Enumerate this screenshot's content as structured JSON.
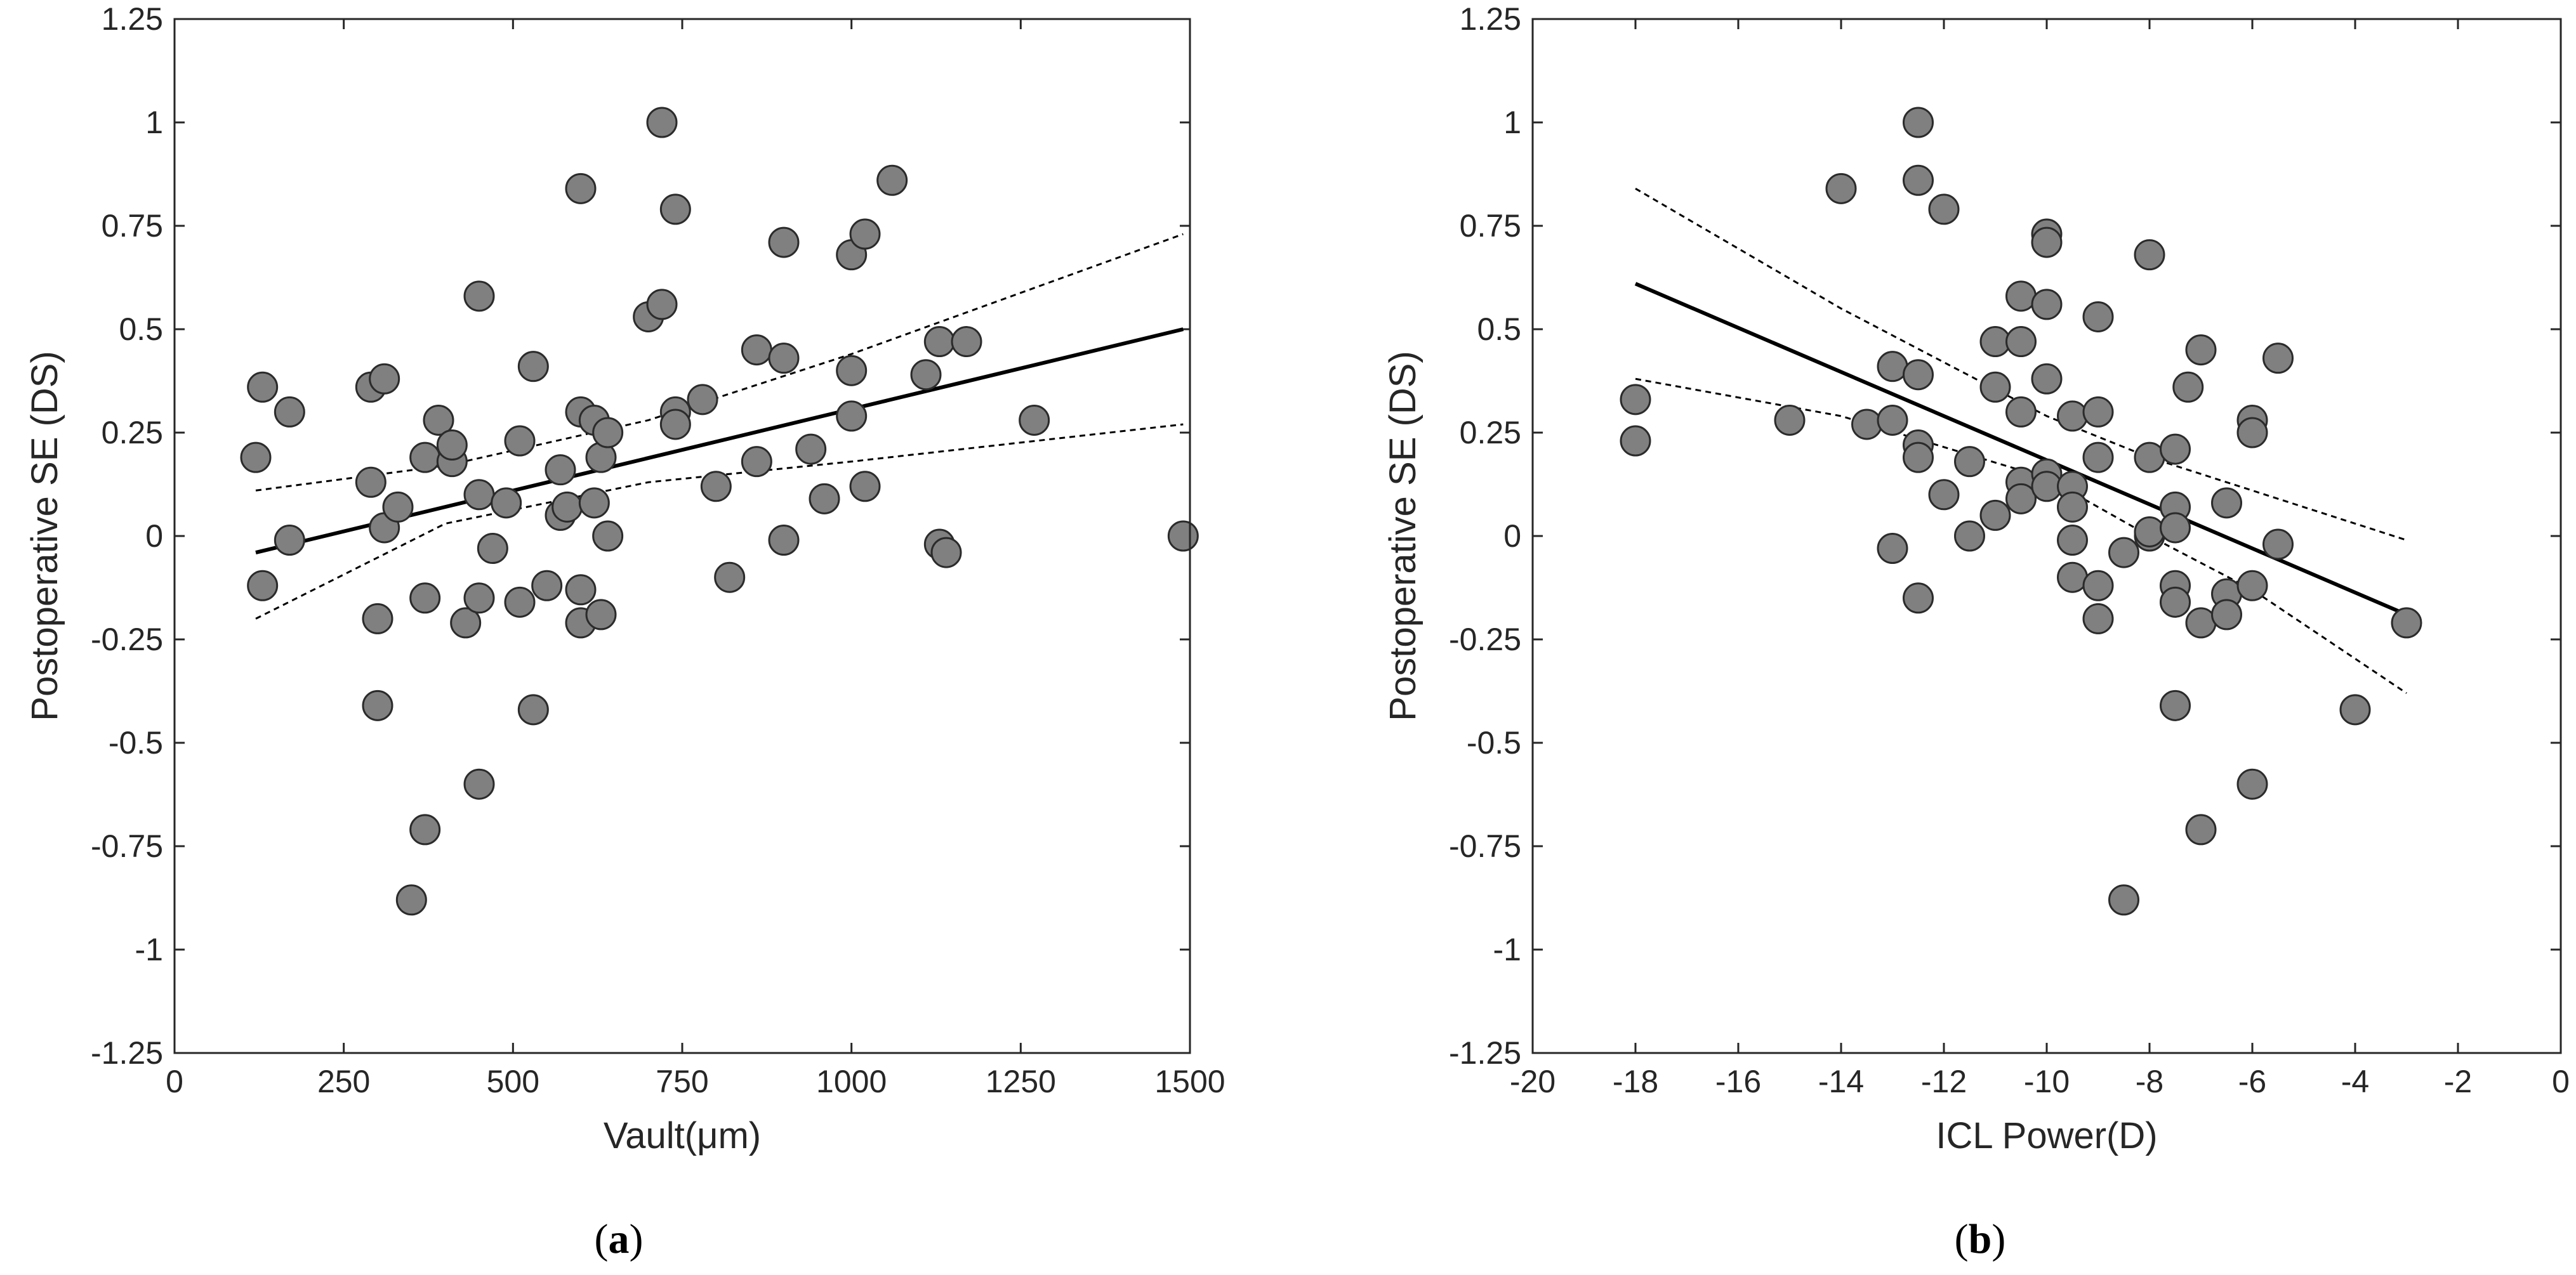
{
  "colors": {
    "marker_fill": "#808080",
    "marker_edge": "#2b2b2b",
    "axis": "#262626",
    "fit_line": "#000000",
    "ci_line": "#000000"
  },
  "chart_data": [
    {
      "type": "scatter",
      "caption_letter": "a",
      "xlabel": "Vault(μm)",
      "ylabel": "Postoperative SE (DS)",
      "xlim": [
        0,
        1500
      ],
      "ylim": [
        -1.25,
        1.25
      ],
      "xticks": [
        0,
        250,
        500,
        750,
        1000,
        1250,
        1500
      ],
      "xtick_labels": [
        "0",
        "250",
        "500",
        "750",
        "1000",
        "1250",
        "1500"
      ],
      "yticks": [
        -1.25,
        -1,
        -0.75,
        -0.5,
        -0.25,
        0,
        0.25,
        0.5,
        0.75,
        1,
        1.25
      ],
      "ytick_labels": [
        "-1.25",
        "-1",
        "-0.75",
        "-0.5",
        "-0.25",
        "0",
        "0.25",
        "0.5",
        "0.75",
        "1",
        "1.25"
      ],
      "points": [
        [
          120,
          0.19
        ],
        [
          130,
          0.36
        ],
        [
          130,
          -0.12
        ],
        [
          170,
          0.3
        ],
        [
          170,
          -0.01
        ],
        [
          290,
          0.36
        ],
        [
          290,
          0.13
        ],
        [
          300,
          -0.2
        ],
        [
          300,
          -0.41
        ],
        [
          310,
          0.38
        ],
        [
          310,
          0.02
        ],
        [
          330,
          0.07
        ],
        [
          350,
          -0.88
        ],
        [
          370,
          0.19
        ],
        [
          370,
          -0.15
        ],
        [
          370,
          -0.71
        ],
        [
          390,
          0.28
        ],
        [
          410,
          0.18
        ],
        [
          410,
          0.22
        ],
        [
          430,
          -0.21
        ],
        [
          450,
          0.58
        ],
        [
          450,
          0.1
        ],
        [
          450,
          -0.15
        ],
        [
          450,
          -0.6
        ],
        [
          470,
          -0.03
        ],
        [
          490,
          0.08
        ],
        [
          510,
          0.23
        ],
        [
          510,
          -0.16
        ],
        [
          530,
          0.41
        ],
        [
          530,
          -0.42
        ],
        [
          550,
          -0.12
        ],
        [
          570,
          0.16
        ],
        [
          570,
          0.05
        ],
        [
          580,
          0.07
        ],
        [
          600,
          0.84
        ],
        [
          600,
          0.3
        ],
        [
          600,
          -0.13
        ],
        [
          600,
          -0.21
        ],
        [
          620,
          0.28
        ],
        [
          620,
          0.08
        ],
        [
          630,
          0.19
        ],
        [
          630,
          -0.19
        ],
        [
          640,
          0.25
        ],
        [
          640,
          0.0
        ],
        [
          700,
          0.53
        ],
        [
          720,
          1.0
        ],
        [
          720,
          0.56
        ],
        [
          740,
          0.79
        ],
        [
          740,
          0.3
        ],
        [
          740,
          0.27
        ],
        [
          780,
          0.33
        ],
        [
          800,
          0.12
        ],
        [
          820,
          -0.1
        ],
        [
          860,
          0.45
        ],
        [
          860,
          0.18
        ],
        [
          900,
          0.71
        ],
        [
          900,
          0.43
        ],
        [
          900,
          -0.01
        ],
        [
          940,
          0.21
        ],
        [
          960,
          0.09
        ],
        [
          1000,
          0.68
        ],
        [
          1000,
          0.4
        ],
        [
          1000,
          0.29
        ],
        [
          1020,
          0.73
        ],
        [
          1020,
          0.12
        ],
        [
          1060,
          0.86
        ],
        [
          1110,
          0.39
        ],
        [
          1130,
          0.47
        ],
        [
          1130,
          -0.02
        ],
        [
          1140,
          -0.04
        ],
        [
          1170,
          0.47
        ],
        [
          1270,
          0.28
        ],
        [
          1490,
          0.0
        ]
      ],
      "fit_line": {
        "x": [
          120,
          1490
        ],
        "y": [
          -0.04,
          0.5
        ]
      },
      "ci_upper": {
        "x": [
          120,
          400,
          700,
          1000,
          1490
        ],
        "y": [
          0.11,
          0.17,
          0.28,
          0.44,
          0.73
        ]
      },
      "ci_lower": {
        "x": [
          120,
          400,
          700,
          1000,
          1490
        ],
        "y": [
          -0.2,
          0.03,
          0.13,
          0.18,
          0.27
        ]
      }
    },
    {
      "type": "scatter",
      "caption_letter": "b",
      "xlabel": "ICL Power(D)",
      "ylabel": "Postoperative SE (DS)",
      "xlim": [
        -20,
        0
      ],
      "ylim": [
        -1.25,
        1.25
      ],
      "xticks": [
        -20,
        -18,
        -16,
        -14,
        -12,
        -10,
        -8,
        -6,
        -4,
        -2,
        0
      ],
      "xtick_labels": [
        "-20",
        "-18",
        "-16",
        "-14",
        "-12",
        "-10",
        "-8",
        "-6",
        "-4",
        "-2",
        "0"
      ],
      "yticks": [
        -1.25,
        -1,
        -0.75,
        -0.5,
        -0.25,
        0,
        0.25,
        0.5,
        0.75,
        1,
        1.25
      ],
      "ytick_labels": [
        "-1.25",
        "-1",
        "-0.75",
        "-0.5",
        "-0.25",
        "0",
        "0.25",
        "0.5",
        "0.75",
        "1",
        "1.25"
      ],
      "points": [
        [
          -18,
          0.33
        ],
        [
          -18,
          0.23
        ],
        [
          -15,
          0.28
        ],
        [
          -14,
          0.84
        ],
        [
          -13.5,
          0.27
        ],
        [
          -13,
          0.41
        ],
        [
          -13,
          0.28
        ],
        [
          -13,
          -0.03
        ],
        [
          -12.5,
          1.0
        ],
        [
          -12.5,
          0.86
        ],
        [
          -12.5,
          0.39
        ],
        [
          -12.5,
          0.22
        ],
        [
          -12.5,
          0.19
        ],
        [
          -12.5,
          -0.15
        ],
        [
          -12,
          0.79
        ],
        [
          -12,
          0.1
        ],
        [
          -11.5,
          0.18
        ],
        [
          -11.5,
          0.0
        ],
        [
          -11,
          0.47
        ],
        [
          -11,
          0.36
        ],
        [
          -11,
          0.05
        ],
        [
          -10.5,
          0.58
        ],
        [
          -10.5,
          0.47
        ],
        [
          -10.5,
          0.3
        ],
        [
          -10.5,
          0.13
        ],
        [
          -10.5,
          0.09
        ],
        [
          -10,
          0.73
        ],
        [
          -10,
          0.71
        ],
        [
          -10,
          0.56
        ],
        [
          -10,
          0.38
        ],
        [
          -10,
          0.15
        ],
        [
          -10,
          0.12
        ],
        [
          -9.5,
          0.29
        ],
        [
          -9.5,
          0.12
        ],
        [
          -9.5,
          0.07
        ],
        [
          -9.5,
          -0.01
        ],
        [
          -9.5,
          -0.1
        ],
        [
          -9,
          0.53
        ],
        [
          -9,
          0.3
        ],
        [
          -9,
          0.19
        ],
        [
          -9,
          -0.12
        ],
        [
          -9,
          -0.2
        ],
        [
          -8.5,
          -0.04
        ],
        [
          -8.5,
          -0.88
        ],
        [
          -8,
          0.68
        ],
        [
          -8,
          0.19
        ],
        [
          -8,
          0.0
        ],
        [
          -8,
          0.01
        ],
        [
          -7.5,
          0.21
        ],
        [
          -7.5,
          0.07
        ],
        [
          -7.5,
          0.02
        ],
        [
          -7.5,
          -0.12
        ],
        [
          -7.5,
          -0.16
        ],
        [
          -7.5,
          -0.41
        ],
        [
          -7.25,
          0.36
        ],
        [
          -7,
          0.45
        ],
        [
          -7,
          -0.21
        ],
        [
          -7,
          -0.71
        ],
        [
          -6.5,
          0.08
        ],
        [
          -6.5,
          -0.14
        ],
        [
          -6.5,
          -0.19
        ],
        [
          -6,
          0.28
        ],
        [
          -6,
          0.25
        ],
        [
          -6,
          -0.12
        ],
        [
          -6,
          -0.6
        ],
        [
          -5.5,
          0.43
        ],
        [
          -5.5,
          -0.02
        ],
        [
          -4,
          -0.42
        ],
        [
          -3,
          -0.21
        ]
      ],
      "fit_line": {
        "x": [
          -18,
          -3
        ],
        "y": [
          0.61,
          -0.19
        ]
      },
      "ci_upper": {
        "x": [
          -18,
          -14,
          -10,
          -8,
          -6,
          -3
        ],
        "y": [
          0.84,
          0.55,
          0.29,
          0.19,
          0.11,
          -0.01
        ]
      },
      "ci_lower": {
        "x": [
          -18,
          -14,
          -10,
          -8,
          -6,
          -3
        ],
        "y": [
          0.38,
          0.29,
          0.14,
          0.0,
          -0.13,
          -0.38
        ]
      }
    }
  ]
}
